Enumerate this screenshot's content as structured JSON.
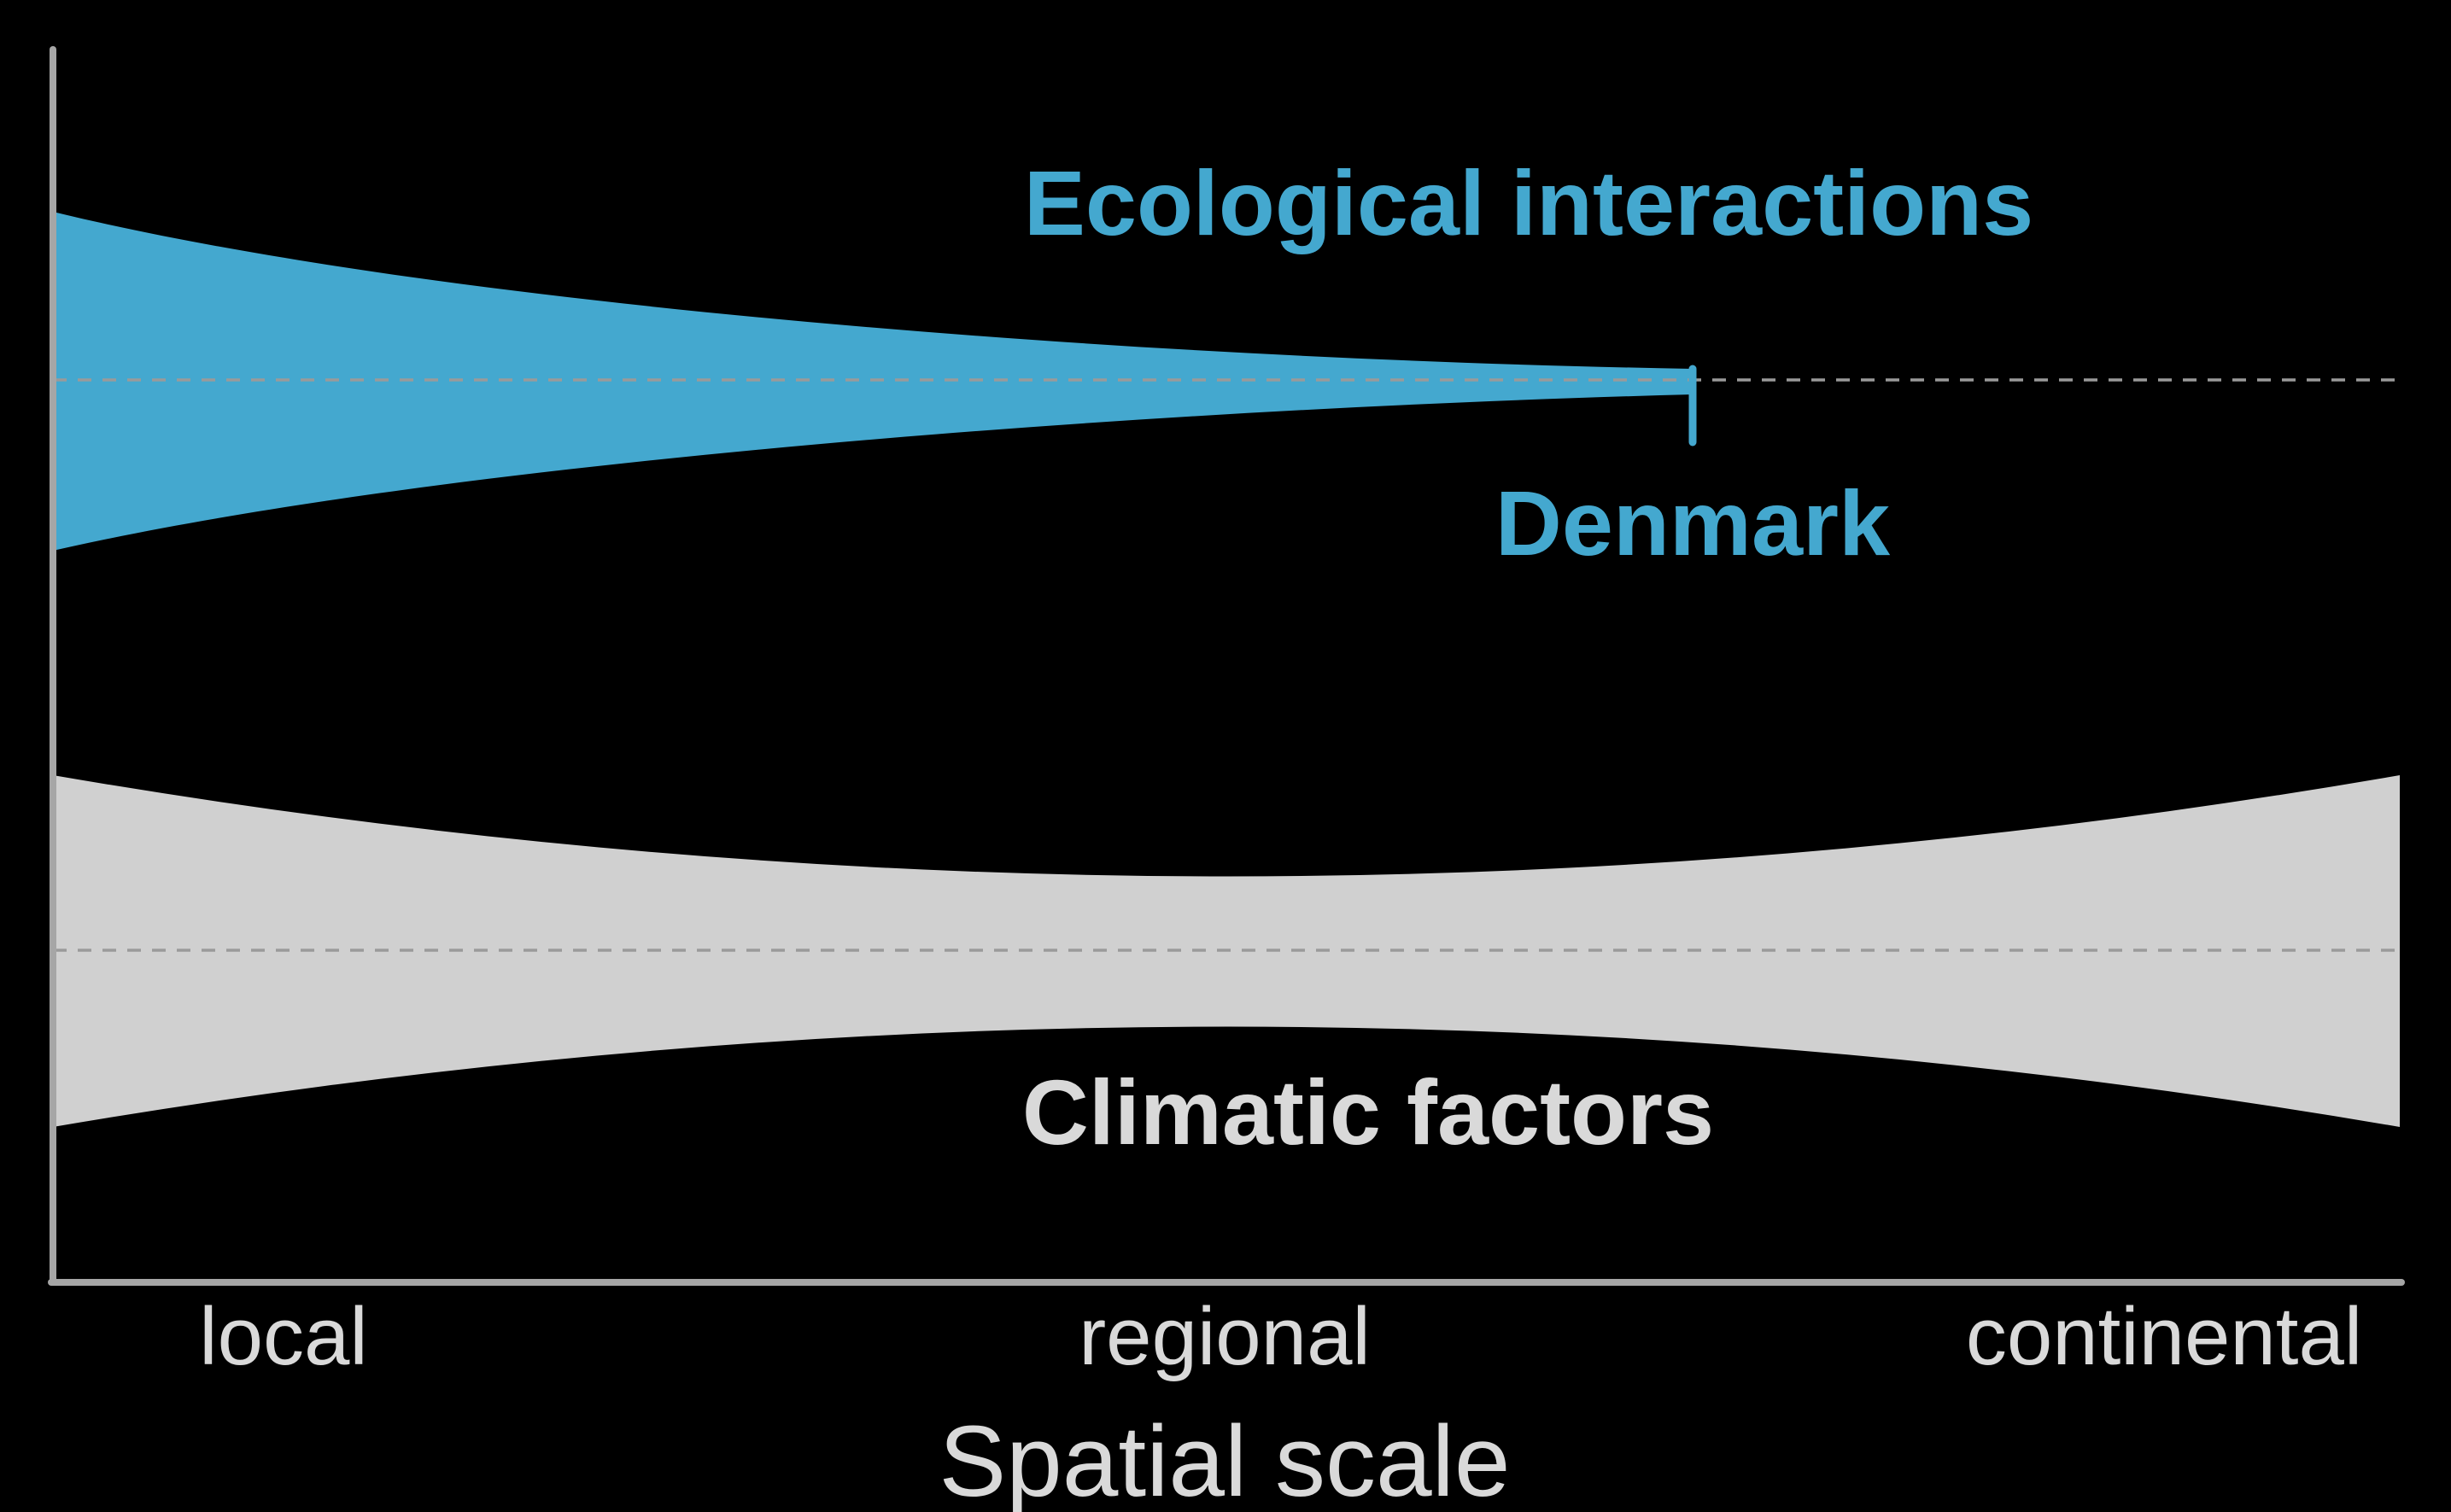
{
  "colors": {
    "background": "#000000",
    "ecological": "#44a8cf",
    "climatic": "#d0d0d0",
    "axis": "#a6a6a6",
    "dashed_line": "#9a9a9a",
    "text_light": "#d9d9d9"
  },
  "labels": {
    "ecological": "Ecological interactions",
    "denmark": "Denmark",
    "climatic": "Climatic factors"
  },
  "x_axis": {
    "ticks": [
      "local",
      "regional",
      "continental"
    ],
    "title": "Spatial scale"
  }
}
